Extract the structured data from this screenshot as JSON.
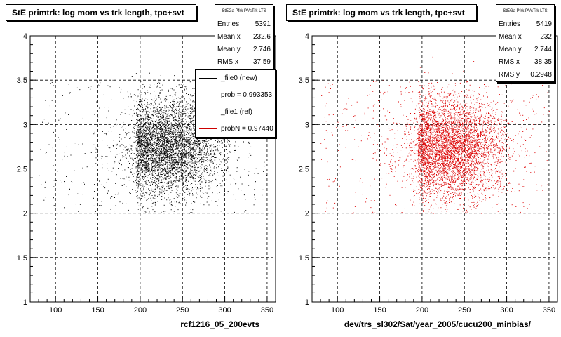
{
  "chart_data": [
    {
      "type": "scatter",
      "title": "StE primtrk: log mom vs trk length, tpc+svt",
      "xlabel": "rcf1216_05_200evts",
      "ylabel": "",
      "xlim": [
        70,
        360
      ],
      "ylim": [
        1,
        4
      ],
      "x_ticks": [
        100,
        150,
        200,
        250,
        300,
        350
      ],
      "y_ticks": [
        1,
        1.5,
        2,
        2.5,
        3,
        3.5,
        4
      ],
      "grid": true,
      "point_color": "#000000",
      "stats": {
        "header": "StEGa Pfrk PVsTrk LTS",
        "entries_label": "Entries",
        "entries": "5391",
        "mean_x_label": "Mean x",
        "mean_x": "232.6",
        "mean_y_label": "Mean y",
        "mean_y": "2.746",
        "rms_x_label": "RMS x",
        "rms_x": "37.59"
      },
      "legend": {
        "placement": "top-right",
        "entries": [
          {
            "label": "_file0 (new)",
            "color": "#000000"
          },
          {
            "label": "prob = 0.993353",
            "color": "#000000"
          },
          {
            "label": "_file1 (ref)",
            "color": "#cc0000"
          },
          {
            "label": "probN = 0.97440",
            "color": "#cc0000"
          }
        ]
      },
      "distribution": {
        "n_points": 5391,
        "mean_x": 232.6,
        "mean_y": 2.746,
        "rms_x": 37.59,
        "rms_y": 0.29
      }
    },
    {
      "type": "scatter",
      "title": "StE primtrk: log mom vs trk length, tpc+svt",
      "xlabel": "dev/trs_sl302/Sat/year_2005/cucu200_minbias/",
      "ylabel": "",
      "xlim": [
        70,
        360
      ],
      "ylim": [
        1,
        4
      ],
      "x_ticks": [
        100,
        150,
        200,
        250,
        300,
        350
      ],
      "y_ticks": [
        1,
        1.5,
        2,
        2.5,
        3,
        3.5,
        4
      ],
      "grid": true,
      "point_color": "#dd0000",
      "stats": {
        "header": "StEGa Pfrk PVsTrk LTS",
        "entries_label": "Entries",
        "entries": "5419",
        "mean_x_label": "Mean x",
        "mean_x": "232",
        "mean_y_label": "Mean y",
        "mean_y": "2.744",
        "rms_x_label": "RMS x",
        "rms_x": "38.35",
        "rms_y_label": "RMS y",
        "rms_y": "0.2948"
      },
      "distribution": {
        "n_points": 5419,
        "mean_x": 232,
        "mean_y": 2.744,
        "rms_x": 38.35,
        "rms_y": 0.2948
      }
    }
  ]
}
